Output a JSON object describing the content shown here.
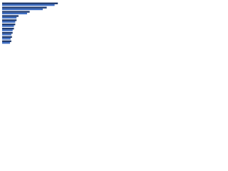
{
  "chart_data": {
    "type": "hbar",
    "categories": [
      null,
      null,
      null,
      null,
      null,
      null,
      null,
      null,
      null,
      null
    ],
    "series": [
      {
        "color": "#1f3a6e",
        "values": [
          85,
          68,
          42,
          25,
          22,
          20,
          18,
          16,
          15,
          14
        ]
      },
      {
        "color": "#3f6fc4",
        "values": [
          80,
          62,
          38,
          22,
          20,
          18,
          16,
          14,
          13,
          12
        ]
      }
    ],
    "xlim": [
      0,
      100
    ]
  }
}
